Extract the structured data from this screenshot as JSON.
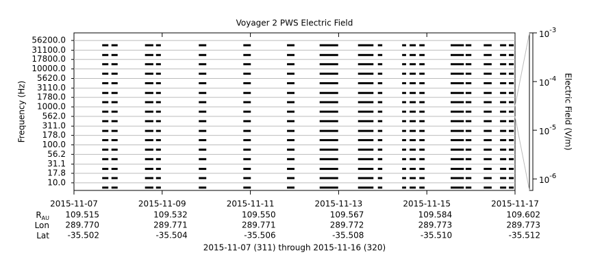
{
  "chart_data": {
    "type": "segments",
    "title": "Voyager 2 PWS Electric Field",
    "y_label": "Frequency (Hz)",
    "y2_label": "Electric Field (V/m)",
    "footer": "2015-11-07 (311) through 2015-11-16 (320)",
    "color": "#000000",
    "grid": true,
    "xlim": [
      0,
      10
    ],
    "xticks": [
      {
        "value": 0,
        "label": "2015-11-07"
      },
      {
        "value": 2,
        "label": "2015-11-09"
      },
      {
        "value": 4,
        "label": "2015-11-11"
      },
      {
        "value": 6,
        "label": "2015-11-13"
      },
      {
        "value": 8,
        "label": "2015-11-15"
      },
      {
        "value": 10,
        "label": "2015-11-17"
      }
    ],
    "ylog": true,
    "ylim": [
      6.3,
      89000
    ],
    "yticks": [
      {
        "value": 10,
        "label": "10.0"
      },
      {
        "value": 17.8,
        "label": "17.8"
      },
      {
        "value": 31.1,
        "label": "31.1"
      },
      {
        "value": 56.2,
        "label": "56.2"
      },
      {
        "value": 100,
        "label": "100.0"
      },
      {
        "value": 178,
        "label": "178.0"
      },
      {
        "value": 311,
        "label": "311.0"
      },
      {
        "value": 562,
        "label": "562.0"
      },
      {
        "value": 1000,
        "label": "1000.0"
      },
      {
        "value": 1780,
        "label": "1780.0"
      },
      {
        "value": 3110,
        "label": "3110.0"
      },
      {
        "value": 5620,
        "label": "5620.0"
      },
      {
        "value": 10000,
        "label": "10000.0"
      },
      {
        "value": 17800,
        "label": "17800.0"
      },
      {
        "value": 31100,
        "label": "31100.0"
      },
      {
        "value": 56200,
        "label": "56200.0"
      }
    ],
    "y2lim": [
      5.8e-07,
      0.001
    ],
    "y2ticks": [
      {
        "value": 0.001,
        "label": "10",
        "exponent": -3
      },
      {
        "value": 0.0001,
        "label": "10",
        "exponent": -4
      },
      {
        "value": 1e-05,
        "label": "10",
        "exponent": -5
      },
      {
        "value": 1e-06,
        "label": "10",
        "exponent": -6
      }
    ],
    "segments": [
      [
        0.64,
        0.78
      ],
      [
        0.85,
        0.99
      ],
      [
        1.61,
        1.8
      ],
      [
        1.86,
        1.97
      ],
      [
        2.83,
        3.0
      ],
      [
        3.84,
        4.01
      ],
      [
        4.83,
        5.0
      ],
      [
        5.57,
        5.99
      ],
      [
        6.44,
        6.79
      ],
      [
        6.89,
        6.99
      ],
      [
        7.44,
        7.53
      ],
      [
        7.61,
        7.75
      ],
      [
        7.83,
        7.95
      ],
      [
        8.54,
        8.84
      ],
      [
        8.88,
        9.01
      ],
      [
        9.29,
        9.47
      ],
      [
        9.66,
        9.8
      ],
      [
        9.86,
        9.97
      ]
    ],
    "ephemeris": {
      "row_labels": [
        {
          "main": "R",
          "sub": "AU"
        },
        {
          "main": "Lon"
        },
        {
          "main": "Lat"
        }
      ],
      "rows": [
        [
          "109.515",
          "109.532",
          "109.550",
          "109.567",
          "109.584",
          "109.602"
        ],
        [
          "289.770",
          "289.771",
          "289.771",
          "289.772",
          "289.773",
          "289.773"
        ],
        [
          "-35.502",
          "-35.504",
          "-35.506",
          "-35.508",
          "-35.510",
          "-35.512"
        ]
      ]
    }
  }
}
